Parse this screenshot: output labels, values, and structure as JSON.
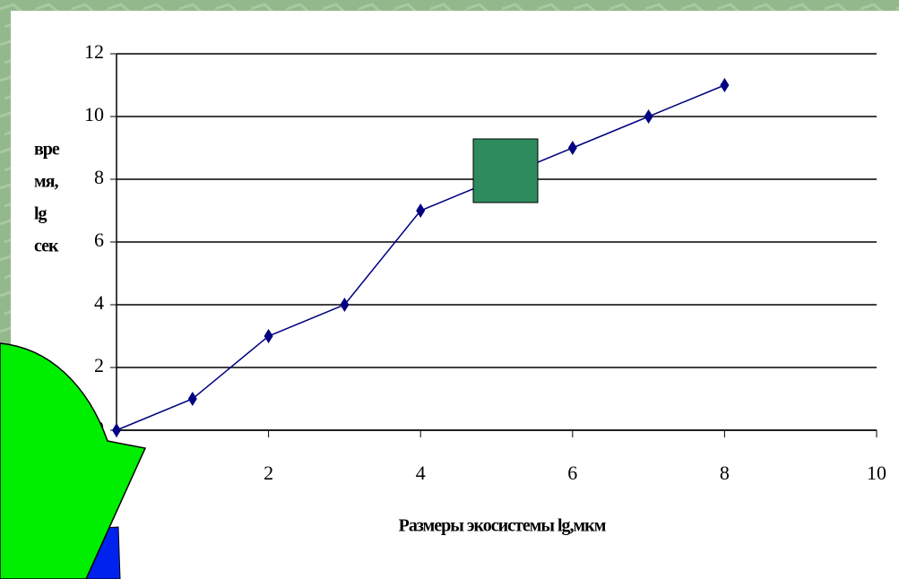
{
  "chart_data": {
    "type": "line",
    "y_label_lines": [
      "вре",
      "мя,",
      "lg",
      "сек"
    ],
    "x_label": "Размеры экосистемы lg,мкм",
    "x": [
      0,
      1,
      2,
      3,
      4,
      5,
      6,
      7,
      8
    ],
    "series": [
      {
        "color": "#000080",
        "values": [
          0,
          1,
          3,
          4,
          7,
          8,
          9,
          10,
          11
        ]
      }
    ],
    "xlim": [
      0,
      10
    ],
    "xticks": [
      0,
      2,
      4,
      6,
      8,
      10
    ],
    "ylim": [
      0,
      12
    ],
    "yticks": [
      0,
      2,
      4,
      6,
      8,
      10,
      12
    ],
    "grid": true
  }
}
